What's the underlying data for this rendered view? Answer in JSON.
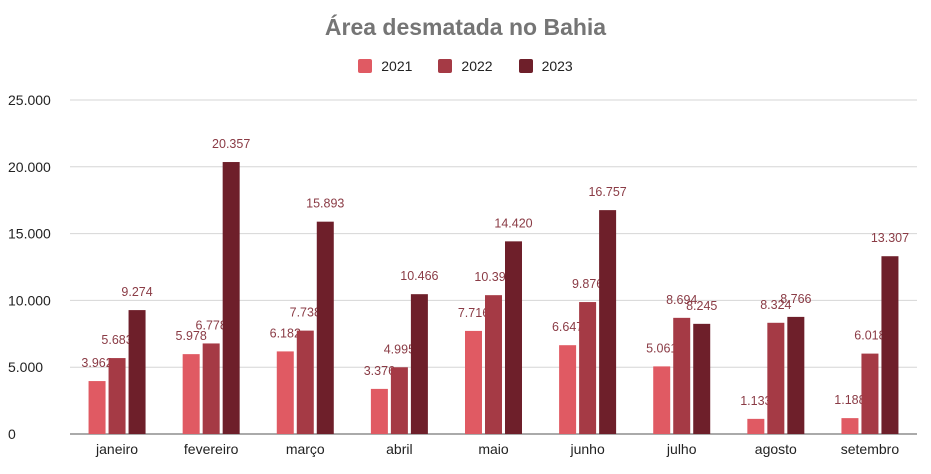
{
  "chart_data": {
    "type": "bar",
    "title": "Área desmatada no Bahia",
    "categories": [
      "janeiro",
      "fevereiro",
      "março",
      "abril",
      "maio",
      "junho",
      "julho",
      "agosto",
      "setembro"
    ],
    "series": [
      {
        "name": "2021",
        "color": "#e05a63",
        "values": [
          3962,
          5978,
          6182,
          3376,
          7716,
          6647,
          5061,
          1133,
          1188
        ],
        "labels": [
          "3.962",
          "5.978",
          "6.182",
          "3.376",
          "7.716",
          "6.647",
          "5.061",
          "1.133",
          "1.188"
        ]
      },
      {
        "name": "2022",
        "color": "#a53a45",
        "values": [
          5683,
          6778,
          7738,
          4995,
          10392,
          9876,
          8694,
          8324,
          6018
        ],
        "labels": [
          "5.683",
          "6.778",
          "7.738",
          "4.995",
          "10.392",
          "9.876",
          "8.694",
          "8.324",
          "6.018"
        ]
      },
      {
        "name": "2023",
        "color": "#6e1f2a",
        "values": [
          9274,
          20357,
          15893,
          10466,
          14420,
          16757,
          8245,
          8766,
          13307
        ],
        "labels": [
          "9.274",
          "20.357",
          "15.893",
          "10.466",
          "14.420",
          "16.757",
          "8.245",
          "8.766",
          "13.307"
        ]
      }
    ],
    "yticks": [
      0,
      5000,
      10000,
      15000,
      20000,
      25000
    ],
    "ytick_labels": [
      "0",
      "5.000",
      "10.000",
      "15.000",
      "20.000",
      "25.000"
    ],
    "ylim": [
      0,
      25000
    ],
    "grid": true,
    "legend_position": "top-center"
  }
}
